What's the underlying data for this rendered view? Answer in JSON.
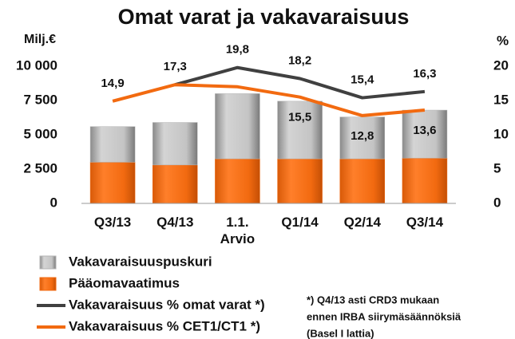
{
  "chart_data": {
    "type": "bar",
    "title": "Omat varat ja vakavaraisuus",
    "y_label": "Milj.€",
    "y2_label": "%",
    "categories": [
      "Q3/13",
      "Q4/13",
      "1.1. Arvio",
      "Q1/14",
      "Q2/14",
      "Q3/14"
    ],
    "stacked": true,
    "series": [
      {
        "name": "Vakavaraisuuspuskuri",
        "type": "bar",
        "color": "#b3b3b3",
        "values": [
          2600,
          3100,
          4750,
          4200,
          3050,
          3500
        ]
      },
      {
        "name": "Pääomavaatimus",
        "type": "bar",
        "color": "#f26a10",
        "values": [
          3000,
          2800,
          3250,
          3250,
          3250,
          3300
        ]
      },
      {
        "name": "Vakavaraisuus % omat varat *)",
        "type": "line",
        "axis": "y2",
        "color": "#404040",
        "values": [
          null,
          17.3,
          19.8,
          18.2,
          15.4,
          16.3
        ],
        "value_labels": [
          null,
          "17,3",
          "19,8",
          "18,2",
          "15,4",
          "16,3"
        ]
      },
      {
        "name": "Vakavaraisuus % CET1/CT1 *)",
        "type": "line",
        "axis": "y2",
        "color": "#f26a10",
        "values": [
          14.9,
          17.3,
          17.0,
          15.5,
          12.8,
          13.6
        ],
        "value_labels": [
          "14,9",
          null,
          null,
          "15,5",
          "12,8",
          "13,6"
        ]
      }
    ],
    "ylim": [
      0,
      10000
    ],
    "yticks": [
      0,
      {
        "value": 2500,
        "label": "2 500"
      },
      {
        "value": 5000,
        "label": "5 000"
      },
      {
        "value": 7500,
        "label": "7 500"
      },
      {
        "value": 10000,
        "label": "10 000"
      }
    ],
    "y2lim": [
      0,
      20
    ],
    "y2ticks": [
      0,
      5,
      10,
      15,
      20
    ],
    "legend": "bottom-left",
    "annotations": [
      "*) Q4/13 asti CRD3 mukaan",
      "ennen IRBA siirymäsäännöksiä",
      "(Basel I lattia)"
    ]
  }
}
